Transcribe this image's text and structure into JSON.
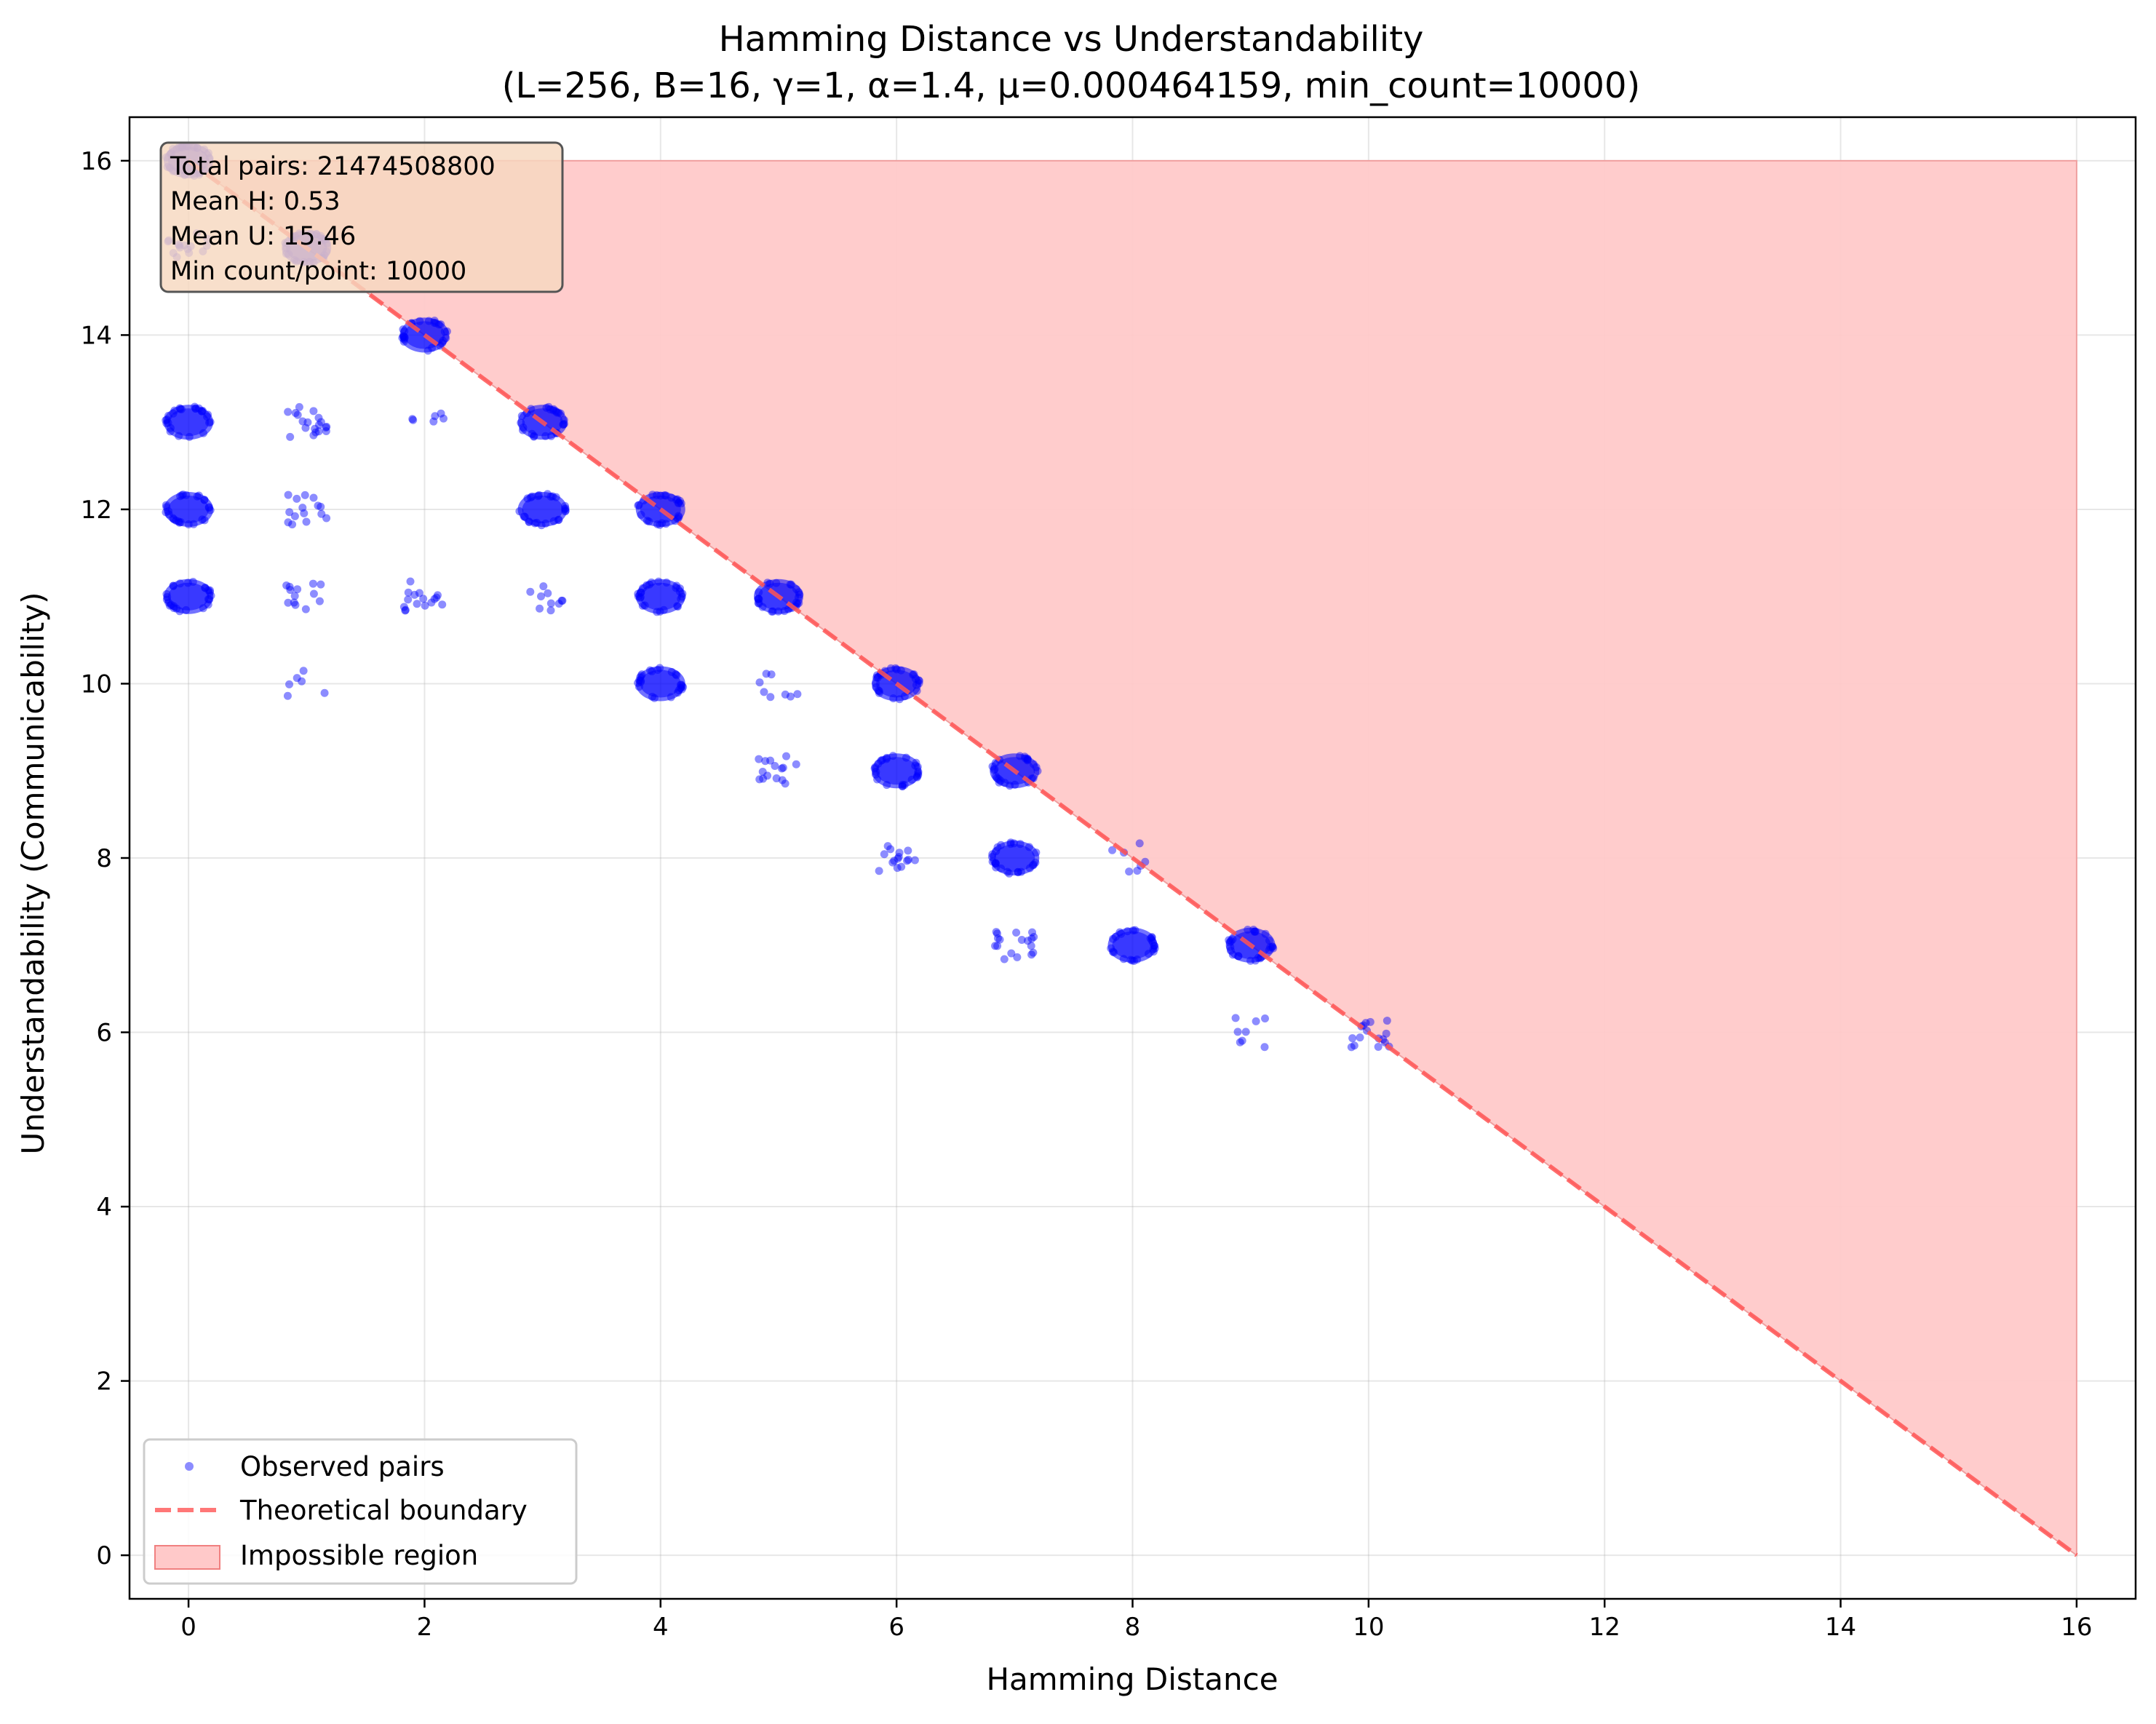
{
  "chart_data": {
    "type": "scatter",
    "title": "Hamming Distance vs Understandability",
    "subtitle": "(L=256, B=16, γ=1, α=1.4, μ=0.000464159, min_count=10000)",
    "xlabel": "Hamming Distance",
    "ylabel": "Understandability (Communicability)",
    "xlim": [
      -0.5,
      16.5
    ],
    "ylim": [
      -0.5,
      16.5
    ],
    "xticks": [
      0,
      2,
      4,
      6,
      8,
      10,
      12,
      14,
      16
    ],
    "yticks": [
      0,
      2,
      4,
      6,
      8,
      10,
      12,
      14,
      16
    ],
    "grid": true,
    "legend_position": "lower-left",
    "stats_box": [
      "Total pairs: 21474508800",
      "Mean H: 0.53",
      "Mean U: 15.46",
      "Min count/point: 10000"
    ],
    "colors": {
      "points": "#0000ff",
      "boundary": "#ff5555",
      "region": "#ffc9c9",
      "stats_box_bg": "#f7d8c0"
    },
    "series": [
      {
        "name": "Observed pairs",
        "kind": "scatter",
        "points": [
          {
            "x": 0,
            "y": 16,
            "density": "dense"
          },
          {
            "x": 0,
            "y": 15,
            "density": "sparse"
          },
          {
            "x": 0,
            "y": 13,
            "density": "dense"
          },
          {
            "x": 0,
            "y": 12,
            "density": "dense"
          },
          {
            "x": 0,
            "y": 11,
            "density": "dense"
          },
          {
            "x": 1,
            "y": 15,
            "density": "dense"
          },
          {
            "x": 1,
            "y": 13,
            "density": "sparse"
          },
          {
            "x": 1,
            "y": 12,
            "density": "sparse"
          },
          {
            "x": 1,
            "y": 11,
            "density": "sparse"
          },
          {
            "x": 1,
            "y": 10,
            "density": "sparse"
          },
          {
            "x": 2,
            "y": 14,
            "density": "dense"
          },
          {
            "x": 2,
            "y": 13,
            "density": "sparse"
          },
          {
            "x": 2,
            "y": 11,
            "density": "sparse"
          },
          {
            "x": 3,
            "y": 13,
            "density": "dense"
          },
          {
            "x": 3,
            "y": 12,
            "density": "dense"
          },
          {
            "x": 3,
            "y": 11,
            "density": "sparse"
          },
          {
            "x": 4,
            "y": 12,
            "density": "dense"
          },
          {
            "x": 4,
            "y": 11,
            "density": "dense"
          },
          {
            "x": 4,
            "y": 10,
            "density": "dense"
          },
          {
            "x": 5,
            "y": 11,
            "density": "dense"
          },
          {
            "x": 5,
            "y": 10,
            "density": "sparse"
          },
          {
            "x": 5,
            "y": 9,
            "density": "sparse"
          },
          {
            "x": 6,
            "y": 10,
            "density": "dense"
          },
          {
            "x": 6,
            "y": 9,
            "density": "dense"
          },
          {
            "x": 6,
            "y": 8,
            "density": "sparse"
          },
          {
            "x": 7,
            "y": 9,
            "density": "dense"
          },
          {
            "x": 7,
            "y": 8,
            "density": "dense"
          },
          {
            "x": 7,
            "y": 7,
            "density": "sparse"
          },
          {
            "x": 8,
            "y": 8,
            "density": "sparse"
          },
          {
            "x": 8,
            "y": 7,
            "density": "dense"
          },
          {
            "x": 9,
            "y": 7,
            "density": "dense"
          },
          {
            "x": 9,
            "y": 6,
            "density": "sparse"
          },
          {
            "x": 10,
            "y": 6,
            "density": "sparse"
          }
        ]
      },
      {
        "name": "Theoretical boundary",
        "kind": "line",
        "x": [
          0,
          16
        ],
        "y": [
          16,
          0
        ]
      },
      {
        "name": "Impossible region",
        "kind": "area",
        "x": [
          0,
          16,
          16
        ],
        "y": [
          16,
          16,
          0
        ]
      }
    ]
  }
}
